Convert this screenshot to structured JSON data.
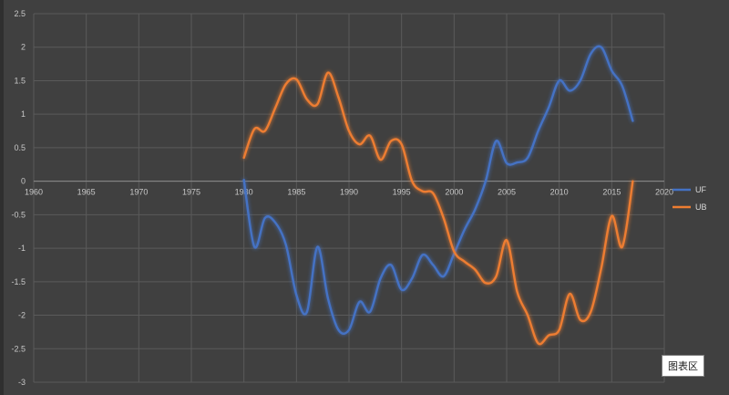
{
  "chart_data": {
    "type": "line",
    "title": "",
    "xlabel": "",
    "ylabel": "",
    "xlim": [
      1960,
      2020
    ],
    "ylim": [
      -3,
      2.5
    ],
    "x_ticks": [
      1960,
      1965,
      1970,
      1975,
      1980,
      1985,
      1990,
      1995,
      2000,
      2005,
      2010,
      2015,
      2020
    ],
    "y_ticks": [
      2.5,
      2,
      1.5,
      1,
      0.5,
      0,
      -0.5,
      -1,
      -1.5,
      -2,
      -2.5,
      -3
    ],
    "y_tick_labels": [
      "2.5",
      "2",
      "1.5",
      "1",
      "0.5",
      "0",
      "-0.5",
      "-1",
      "-1.5",
      "-2",
      "-2.5",
      "-3"
    ],
    "grid": true,
    "legend_position": "right",
    "series": [
      {
        "name": "UF",
        "color": "#4472c4",
        "x": [
          1980,
          1981,
          1982,
          1983,
          1984,
          1985,
          1986,
          1987,
          1988,
          1989,
          1990,
          1991,
          1992,
          1993,
          1994,
          1995,
          1996,
          1997,
          1998,
          1999,
          2000,
          2001,
          2002,
          2003,
          2004,
          2005,
          2006,
          2007,
          2008,
          2009,
          2010,
          2011,
          2012,
          2013,
          2014,
          2015,
          2016,
          2017
        ],
        "values": [
          0.02,
          -0.98,
          -0.55,
          -0.62,
          -0.95,
          -1.7,
          -1.95,
          -0.98,
          -1.75,
          -2.22,
          -2.22,
          -1.8,
          -1.95,
          -1.45,
          -1.25,
          -1.62,
          -1.45,
          -1.1,
          -1.25,
          -1.42,
          -1.08,
          -0.72,
          -0.42,
          0.0,
          0.6,
          0.27,
          0.28,
          0.35,
          0.75,
          1.1,
          1.5,
          1.35,
          1.5,
          1.9,
          2.0,
          1.65,
          1.42,
          0.9
        ]
      },
      {
        "name": "UB",
        "color": "#ed7d31",
        "x": [
          1980,
          1981,
          1982,
          1983,
          1984,
          1985,
          1986,
          1987,
          1988,
          1989,
          1990,
          1991,
          1992,
          1993,
          1994,
          1995,
          1996,
          1997,
          1998,
          1999,
          2000,
          2001,
          2002,
          2003,
          2004,
          2005,
          2006,
          2007,
          2008,
          2009,
          2010,
          2011,
          2012,
          2013,
          2014,
          2015,
          2016,
          2017
        ],
        "values": [
          0.35,
          0.78,
          0.75,
          1.1,
          1.45,
          1.52,
          1.22,
          1.15,
          1.62,
          1.25,
          0.75,
          0.55,
          0.68,
          0.32,
          0.6,
          0.55,
          0.0,
          -0.15,
          -0.18,
          -0.55,
          -1.05,
          -1.2,
          -1.32,
          -1.52,
          -1.42,
          -0.88,
          -1.65,
          -2.0,
          -2.42,
          -2.3,
          -2.22,
          -1.68,
          -2.07,
          -1.95,
          -1.3,
          -0.52,
          -0.98,
          0.0
        ]
      }
    ]
  },
  "tooltip": {
    "text": "图表区"
  }
}
